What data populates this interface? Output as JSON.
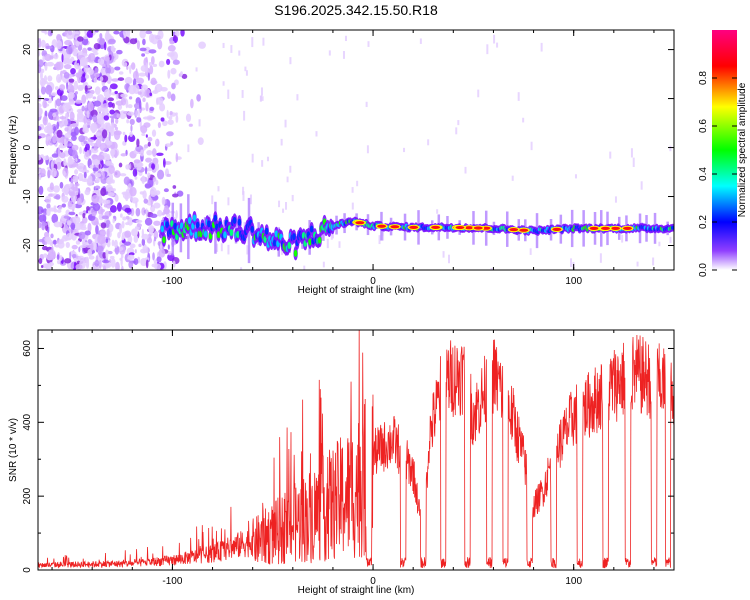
{
  "title": "S196.2025.342.15.50.R18",
  "chart_data": [
    {
      "type": "heatmap",
      "xlabel": "Height of straight line (km)",
      "ylabel": "Frequency (Hz)",
      "xlim": [
        -167,
        150
      ],
      "ylim": [
        -25,
        24
      ],
      "xticks": [
        -100,
        0,
        100
      ],
      "yticks": [
        20,
        10,
        0,
        -10,
        -20
      ],
      "colorbar": {
        "label": "Normalized spectral amplitude",
        "range": [
          0.0,
          1.0
        ],
        "ticks": [
          "0.0",
          "0.2",
          "0.4",
          "0.6",
          "0.8"
        ],
        "tick_values": [
          0.0,
          0.2,
          0.4,
          0.6,
          0.8
        ],
        "colors": [
          "#ffffff",
          "#8000ff",
          "#0000ff",
          "#00ffff",
          "#00ff00",
          "#ffff00",
          "#ff0000",
          "#ff00a0"
        ]
      },
      "ridge": {
        "description_points_x": [
          -105,
          -90,
          -75,
          -60,
          -50,
          -40,
          -30,
          -20,
          -10,
          0,
          20,
          40,
          60,
          80,
          100,
          120,
          150
        ],
        "frequency_hz": [
          -17,
          -16,
          -16.5,
          -17,
          -19,
          -20,
          -18,
          -16,
          -15,
          -16,
          -16.3,
          -16.3,
          -16.5,
          -17,
          -16.5,
          -16.5,
          -16.5
        ]
      }
    },
    {
      "type": "line",
      "xlabel": "Height of straight line (km)",
      "ylabel": "SNR (10 * v/v)",
      "xlim": [
        -167,
        150
      ],
      "ylim": [
        0,
        650
      ],
      "xticks": [
        -100,
        0,
        100
      ],
      "yticks": [
        0,
        200,
        400,
        600
      ],
      "color": "#ee2222",
      "envelope_x": [
        -167,
        -120,
        -100,
        -80,
        -60,
        -40,
        -20,
        -10,
        0,
        10,
        20,
        25,
        28,
        35,
        45,
        50,
        60,
        65,
        70,
        75,
        80,
        85,
        90,
        95,
        100,
        110,
        120,
        130,
        140,
        150
      ],
      "envelope_snr": [
        15,
        20,
        30,
        50,
        90,
        150,
        220,
        260,
        330,
        370,
        280,
        100,
        380,
        540,
        560,
        440,
        560,
        500,
        430,
        320,
        180,
        230,
        330,
        380,
        440,
        480,
        530,
        560,
        540,
        520
      ],
      "dropouts_x": [
        -2,
        15,
        25,
        35,
        47,
        58,
        66,
        78,
        90,
        103,
        116,
        127,
        140,
        147
      ]
    }
  ]
}
